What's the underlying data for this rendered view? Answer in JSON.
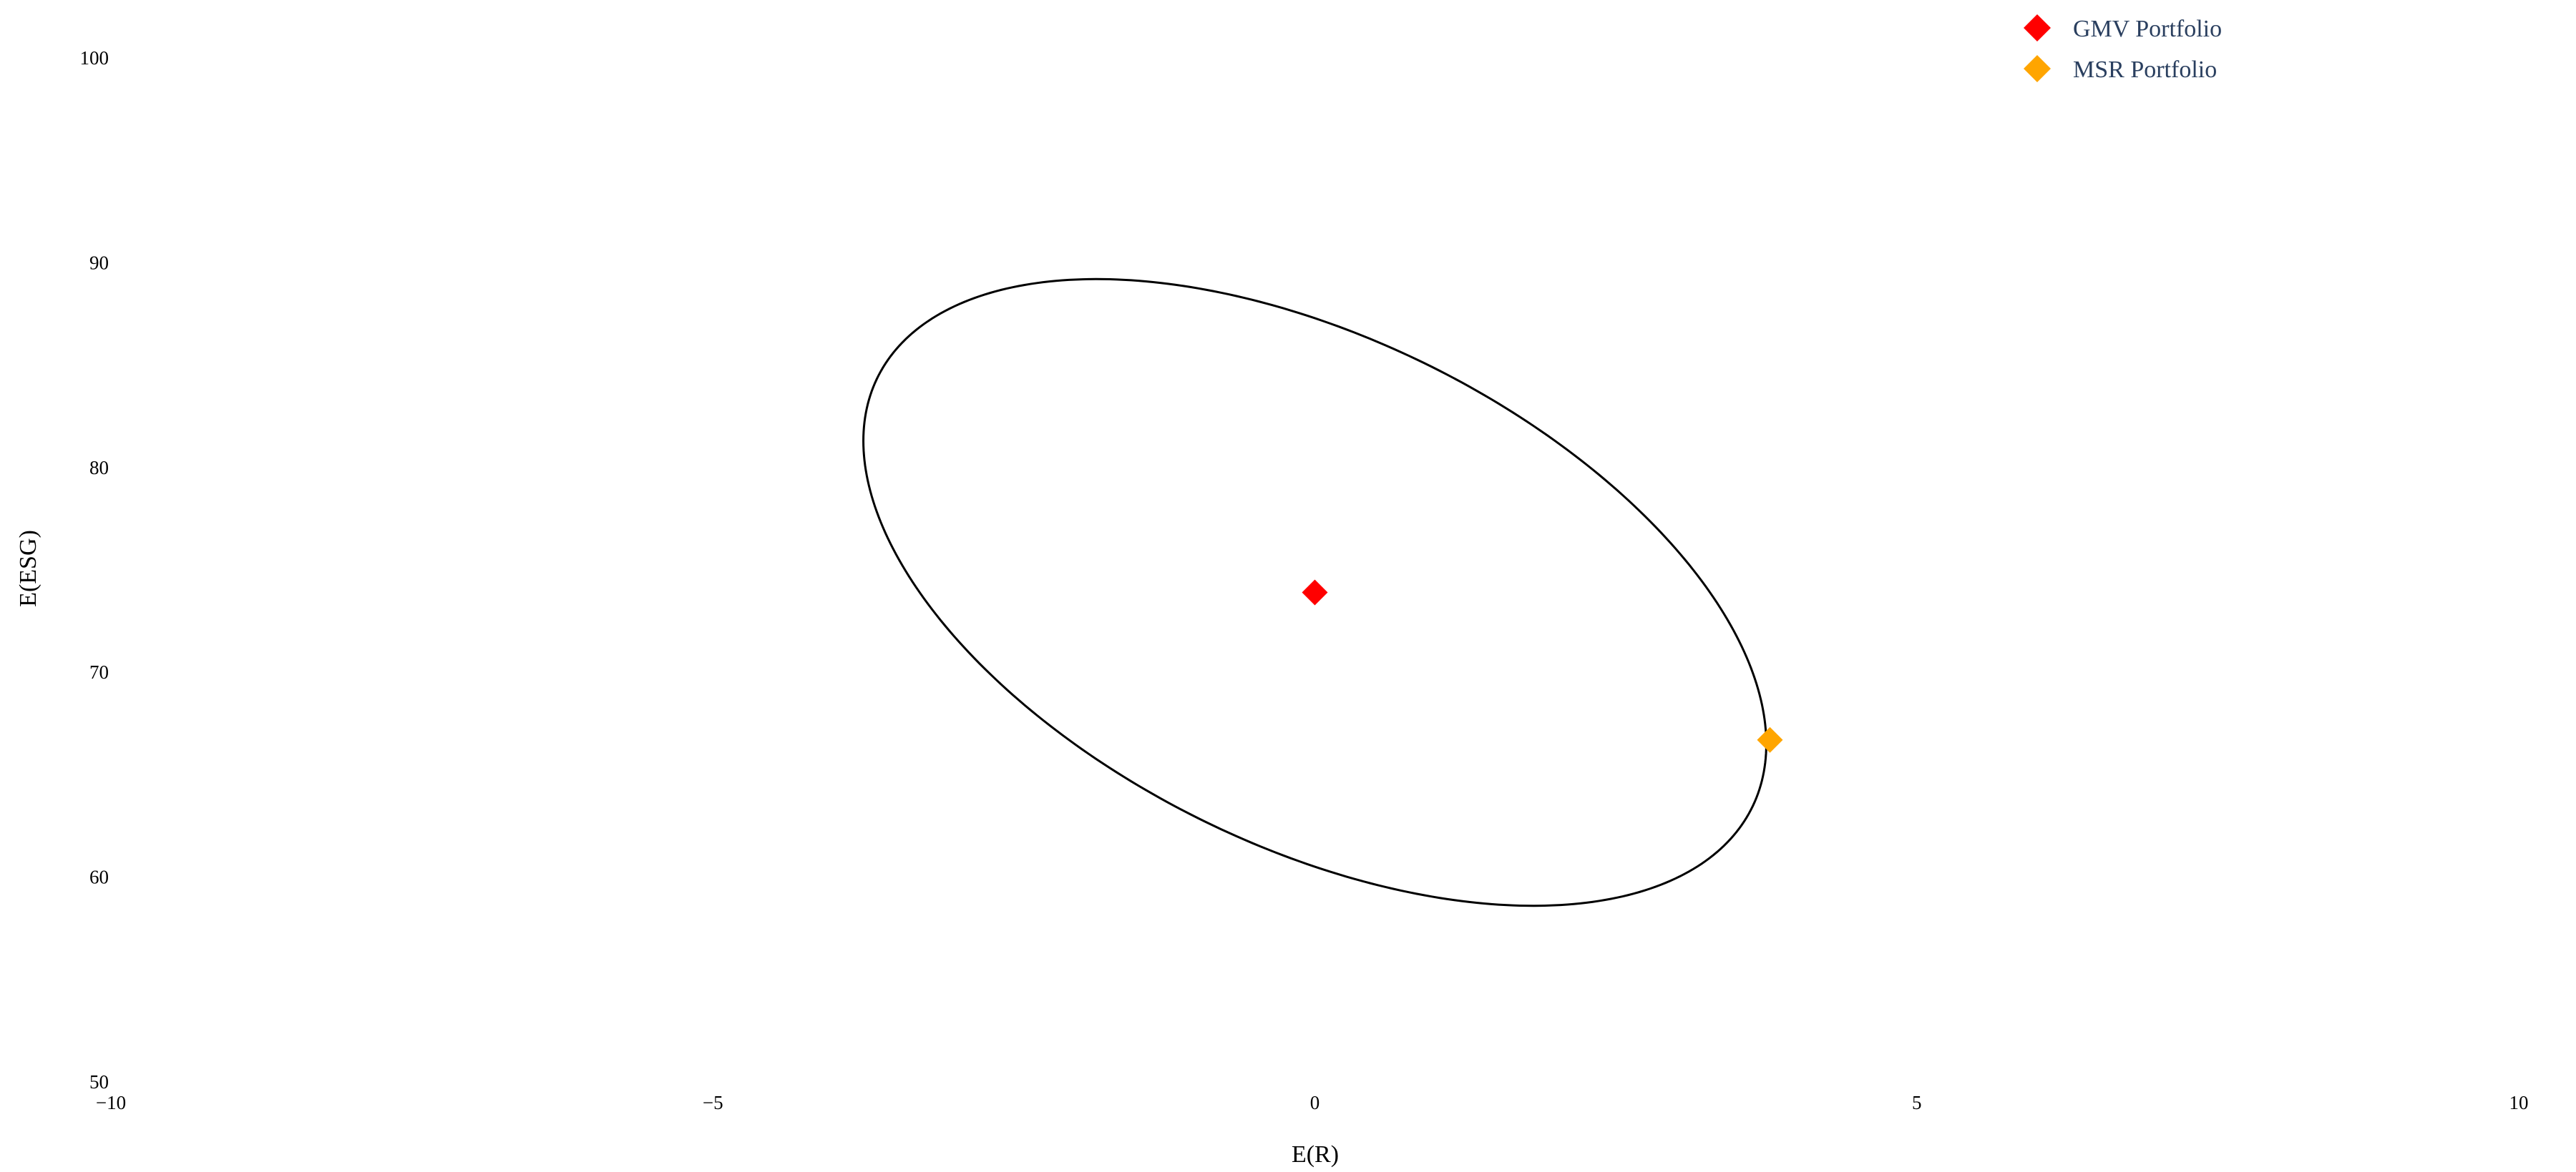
{
  "chart_data": {
    "type": "scatter",
    "title": "",
    "xlabel": "E(R)",
    "ylabel": "E(ESG)",
    "xlim": [
      -10,
      10
    ],
    "ylim": [
      50,
      100
    ],
    "xticks": [
      -10,
      -5,
      0,
      5,
      10
    ],
    "xtick_labels": [
      "−10",
      "−5",
      "0",
      "5",
      "10"
    ],
    "yticks": [
      50,
      60,
      70,
      80,
      90,
      100
    ],
    "ytick_labels": [
      "50",
      "60",
      "70",
      "80",
      "90",
      "100"
    ],
    "grid": false,
    "legend_position": "top-right",
    "ellipse": {
      "color": "#000000",
      "extrema": {
        "x_min": {
          "x": -3.75,
          "y": 81.0
        },
        "x_max": {
          "x": 3.75,
          "y": 66.5
        },
        "y_max": {
          "x": -1.8,
          "y": 89.2
        },
        "y_min": {
          "x": 1.8,
          "y": 58.6
        }
      }
    },
    "series": [
      {
        "name": "GMV Portfolio",
        "marker": "diamond",
        "color": "#ff0000",
        "x": [
          0.0
        ],
        "y": [
          73.9
        ]
      },
      {
        "name": "MSR Portfolio",
        "marker": "diamond",
        "color": "#ffa500",
        "x": [
          3.78
        ],
        "y": [
          66.7
        ]
      }
    ]
  }
}
